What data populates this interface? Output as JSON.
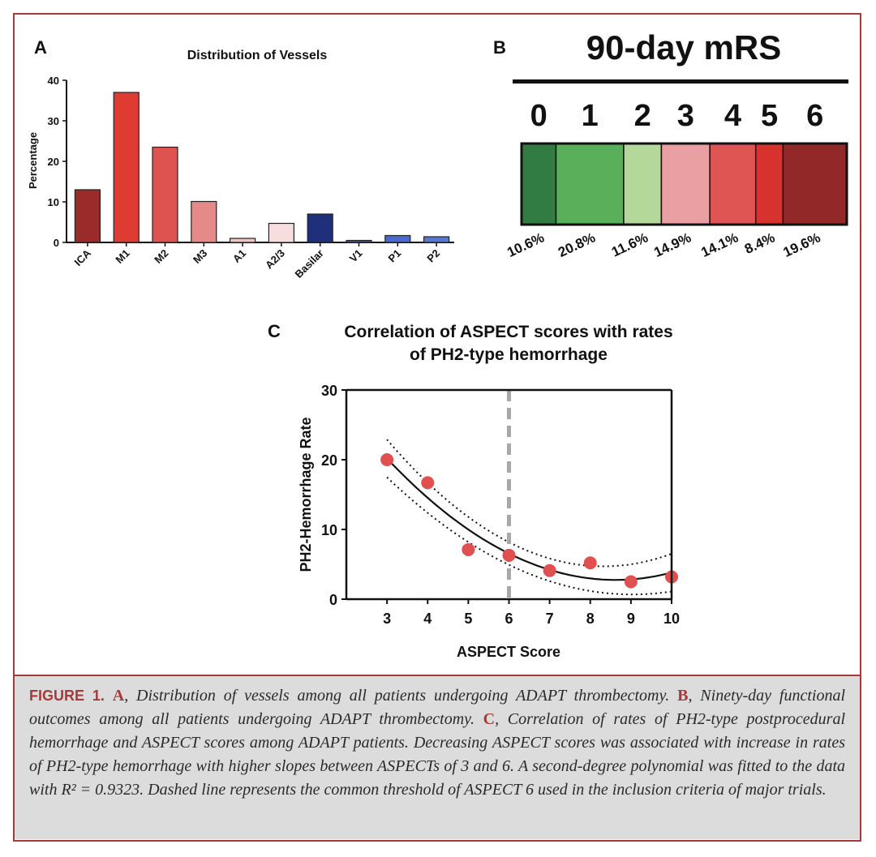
{
  "panel_a": {
    "letter": "A",
    "chart_data": {
      "type": "bar",
      "title": "Distribution of Vessels",
      "xlabel": "",
      "ylabel": "Percentage",
      "ylim": [
        0,
        40
      ],
      "yticks": [
        0,
        10,
        20,
        30,
        40
      ],
      "categories": [
        "ICA",
        "M1",
        "M2",
        "M3",
        "A1",
        "A2/3",
        "Basilar",
        "V1",
        "P1",
        "P2"
      ],
      "values": [
        13,
        37,
        23.5,
        10.1,
        1,
        4.7,
        7,
        0.5,
        1.7,
        1.4
      ],
      "colors": [
        "#9b2a2a",
        "#de3b32",
        "#de5350",
        "#e58a88",
        "#f1c4c4",
        "#f7dede",
        "#1f2f7c",
        "#3a55b4",
        "#4a6ad0",
        "#5878d6"
      ]
    }
  },
  "panel_b": {
    "letter": "B",
    "title": "90-day mRS",
    "scores": [
      "0",
      "1",
      "2",
      "3",
      "4",
      "5",
      "6"
    ],
    "percents": [
      "10.6%",
      "20.8%",
      "11.6%",
      "14.9%",
      "14.1%",
      "8.4%",
      "19.6%"
    ],
    "values": [
      10.6,
      20.8,
      11.6,
      14.9,
      14.1,
      8.4,
      19.6
    ],
    "colors": [
      "#327c44",
      "#5ab05a",
      "#b4d89a",
      "#eaa0a2",
      "#de5553",
      "#d8322e",
      "#922928"
    ]
  },
  "panel_c": {
    "letter": "C",
    "chart_data": {
      "type": "scatter",
      "title_line1": "Correlation of ASPECT scores with rates",
      "title_line2": "of  PH2-type hemorrhage",
      "xlabel": "ASPECT Score",
      "ylabel": "PH2-Hemorrhage Rate",
      "xlim": [
        2,
        10
      ],
      "ylim": [
        0,
        30
      ],
      "xticks": [
        3,
        4,
        5,
        6,
        7,
        8,
        9,
        10
      ],
      "yticks": [
        0,
        10,
        20,
        30
      ],
      "x": [
        3,
        4,
        5,
        6,
        7,
        8,
        9,
        10
      ],
      "y": [
        20,
        16.7,
        7.1,
        6.3,
        4.1,
        5.2,
        2.5,
        3.2
      ],
      "threshold_x": 6,
      "fit": "second-degree polynomial"
    }
  },
  "caption": {
    "label": "FIGURE 1.",
    "ref_a": "A",
    "text_a": ", Distribution of vessels among all patients undergoing ADAPT thrombectomy. ",
    "ref_b": "B",
    "text_b": ", Ninety-day functional outcomes among all patients undergoing ADAPT thrombectomy. ",
    "ref_c": "C",
    "text_c": ", Correlation of rates of PH2-type postprocedural hemorrhage and ASPECT scores among ADAPT patients. Decreasing ASPECT scores was associated with increase in rates of PH2-type hemorrhage with higher slopes between ASPECTs of 3 and 6. A second-degree polynomial was fitted to the data with ",
    "r2": "R² = 0.9323",
    "text_end": ". Dashed line represents the common threshold of ASPECT 6 used in the inclusion criteria of major trials."
  }
}
